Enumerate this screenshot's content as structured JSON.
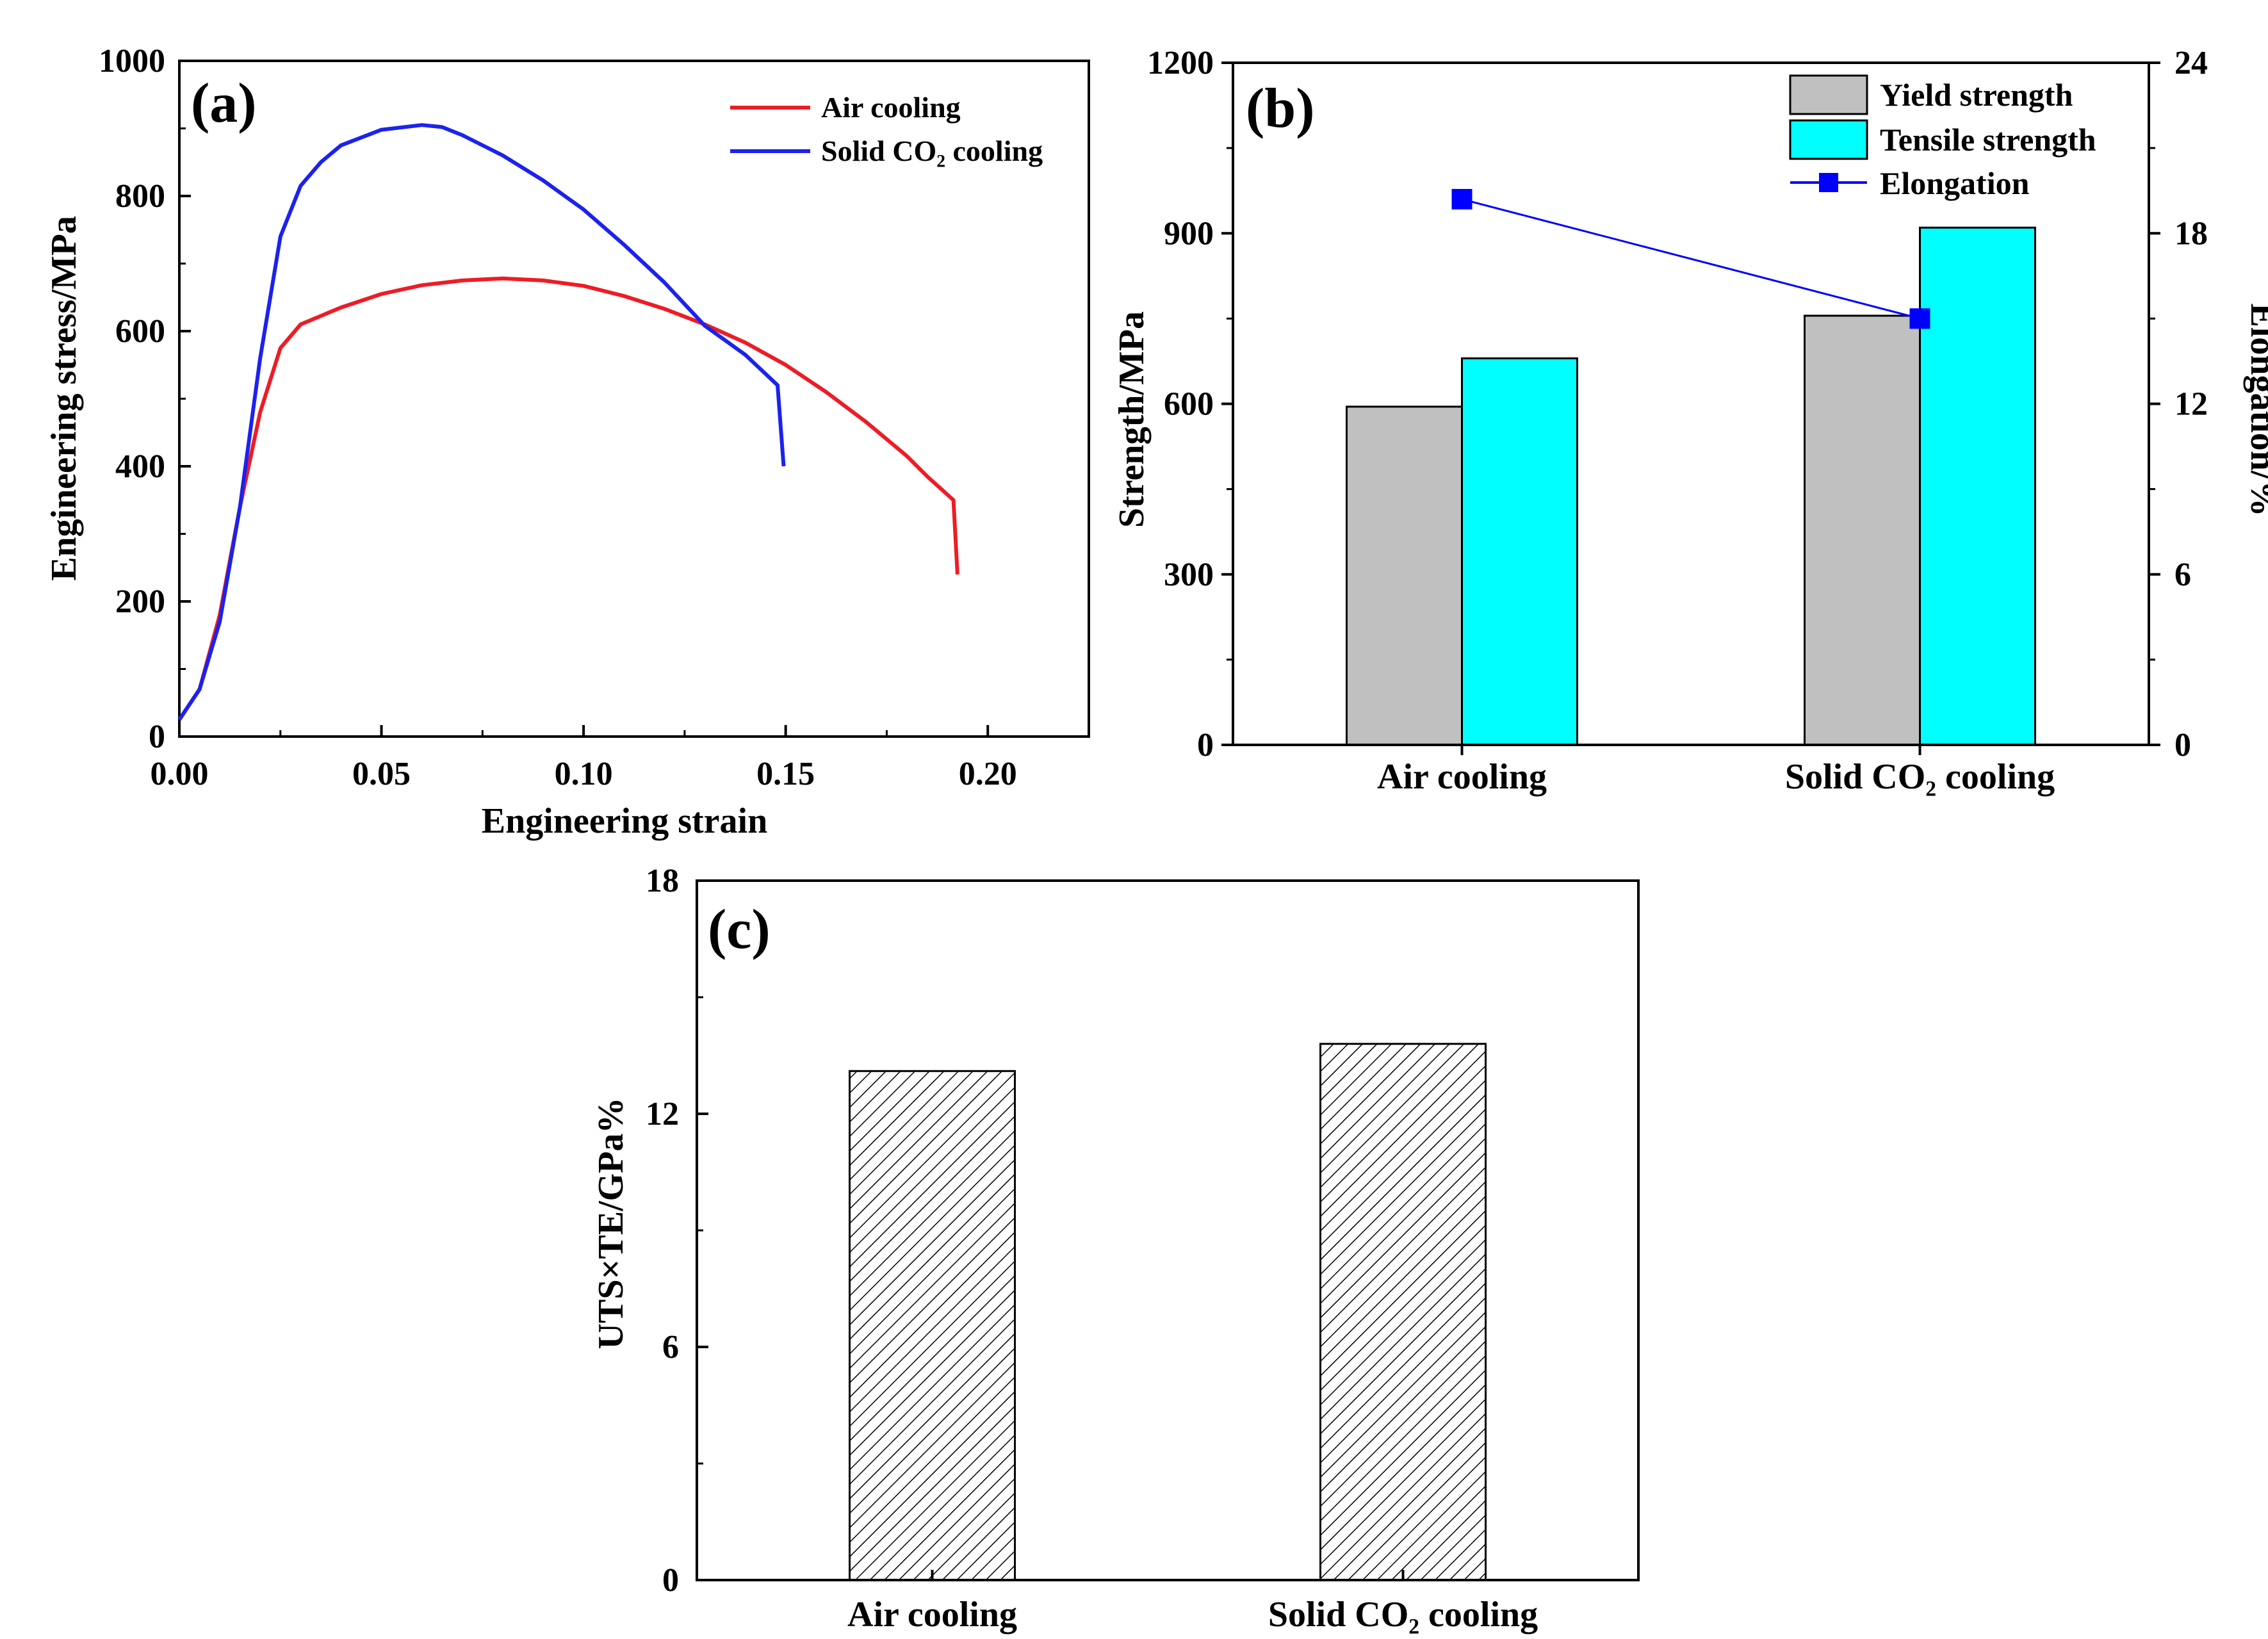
{
  "colors": {
    "air": "#ee1c25",
    "solid": "#1c22ee",
    "yield": "#c0c0c0",
    "tensile": "#00ffff",
    "elongation": "#0000ff"
  },
  "chart_data": [
    {
      "type": "line",
      "panel": "(a)",
      "title": "",
      "xlabel": "Engineering strain",
      "ylabel": "Engineering stress/MPa",
      "xlim": [
        0,
        0.225
      ],
      "ylim": [
        0,
        1000
      ],
      "xticks": [
        "0.00",
        "0.05",
        "0.10",
        "0.15",
        "0.20"
      ],
      "yticks": [
        "0",
        "200",
        "400",
        "600",
        "800",
        "1000"
      ],
      "grid": false,
      "legend_position": "top-right",
      "series": [
        {
          "name": "Air cooling",
          "points": [
            [
              0,
              25
            ],
            [
              0.005,
              70
            ],
            [
              0.01,
              180
            ],
            [
              0.015,
              340
            ],
            [
              0.02,
              480
            ],
            [
              0.025,
              575
            ],
            [
              0.03,
              610
            ],
            [
              0.04,
              635
            ],
            [
              0.05,
              655
            ],
            [
              0.06,
              668
            ],
            [
              0.07,
              675
            ],
            [
              0.08,
              678
            ],
            [
              0.09,
              675
            ],
            [
              0.1,
              667
            ],
            [
              0.11,
              652
            ],
            [
              0.12,
              633
            ],
            [
              0.13,
              610
            ],
            [
              0.14,
              583
            ],
            [
              0.15,
              550
            ],
            [
              0.16,
              510
            ],
            [
              0.17,
              465
            ],
            [
              0.18,
              415
            ],
            [
              0.185,
              385
            ],
            [
              0.1915,
              350
            ],
            [
              0.1925,
              240
            ]
          ]
        },
        {
          "name": "Solid CO₂ cooling",
          "points": [
            [
              0,
              25
            ],
            [
              0.005,
              70
            ],
            [
              0.01,
              170
            ],
            [
              0.015,
              340
            ],
            [
              0.02,
              560
            ],
            [
              0.025,
              740
            ],
            [
              0.03,
              815
            ],
            [
              0.035,
              850
            ],
            [
              0.04,
              875
            ],
            [
              0.05,
              898
            ],
            [
              0.06,
              905
            ],
            [
              0.065,
              902
            ],
            [
              0.07,
              890
            ],
            [
              0.08,
              860
            ],
            [
              0.09,
              823
            ],
            [
              0.1,
              780
            ],
            [
              0.11,
              728
            ],
            [
              0.12,
              672
            ],
            [
              0.13,
              608
            ],
            [
              0.14,
              565
            ],
            [
              0.148,
              520
            ],
            [
              0.1495,
              400
            ]
          ]
        }
      ]
    },
    {
      "type": "bar",
      "panel": "(b)",
      "title": "",
      "xlabel": "",
      "ylabel": "Strength/MPa",
      "y2label": "Elongation/%",
      "categories": [
        "Air cooling",
        "Solid CO₂ cooling"
      ],
      "ylim": [
        0,
        1200
      ],
      "y2lim": [
        0,
        24
      ],
      "yticks": [
        "0",
        "300",
        "600",
        "900",
        "1200"
      ],
      "y2ticks": [
        "0",
        "6",
        "12",
        "18",
        "24"
      ],
      "grid": false,
      "legend_position": "top-right",
      "series": [
        {
          "name": "Yield strength",
          "values": [
            595,
            755
          ]
        },
        {
          "name": "Tensile strength",
          "values": [
            680,
            910
          ]
        },
        {
          "name": "Elongation",
          "type": "line",
          "axis": "right",
          "values": [
            19.2,
            15.0
          ]
        }
      ]
    },
    {
      "type": "bar",
      "panel": "(c)",
      "title": "",
      "xlabel": "",
      "ylabel": "UTS×TE/GPa%",
      "categories": [
        "Air cooling",
        "Solid CO₂ cooling"
      ],
      "ylim": [
        0,
        18
      ],
      "yticks": [
        "0",
        "6",
        "12",
        "18"
      ],
      "grid": false,
      "series": [
        {
          "name": "UTS×TE",
          "values": [
            13.1,
            13.8
          ]
        }
      ]
    }
  ]
}
